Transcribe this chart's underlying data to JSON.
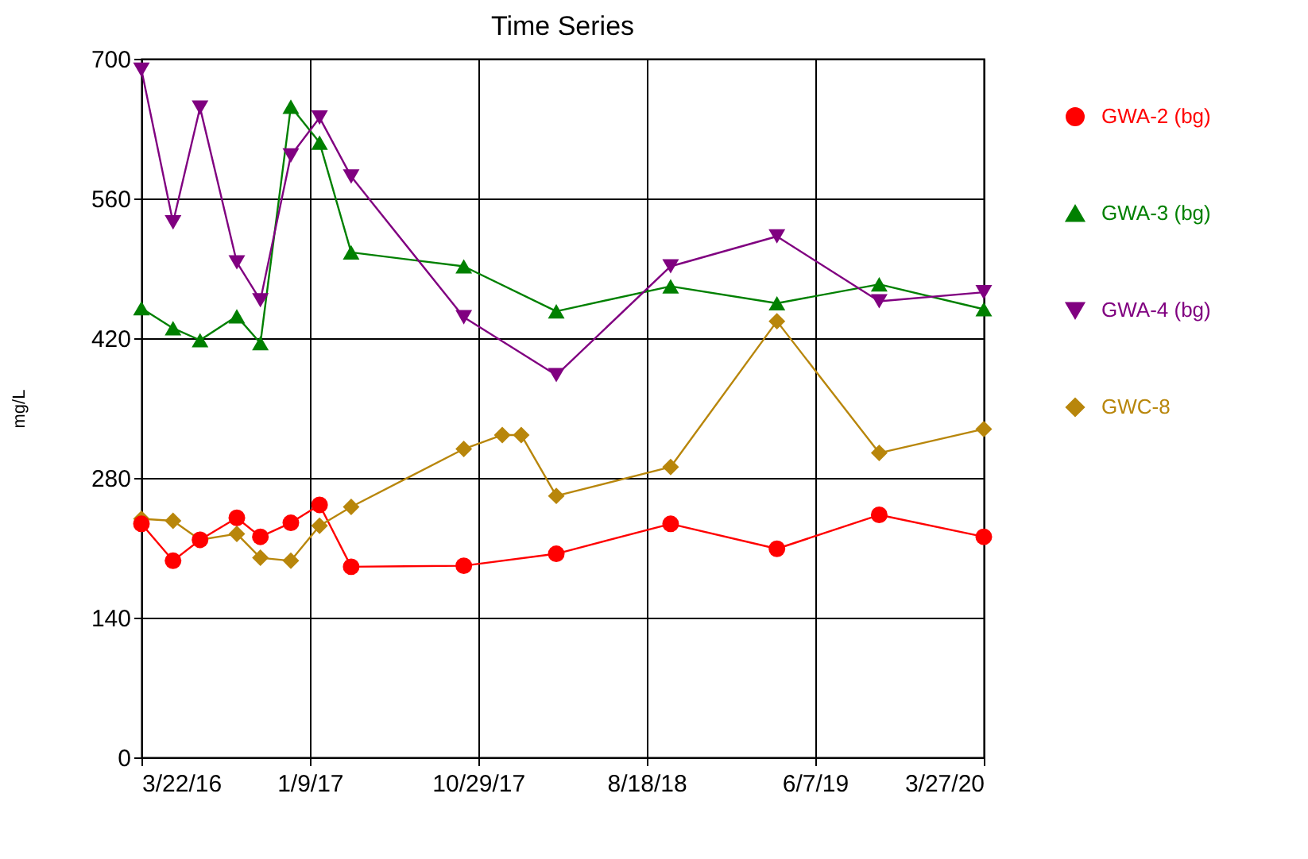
{
  "chart_data": {
    "type": "line",
    "title": "Time Series",
    "ylabel": "mg/L",
    "xlim": [
      "2016-03-22",
      "2020-03-27"
    ],
    "xticks": [
      {
        "value": "2016-03-22",
        "label": "3/22/16"
      },
      {
        "value": "2017-01-09",
        "label": "1/9/17"
      },
      {
        "value": "2017-10-29",
        "label": "10/29/17"
      },
      {
        "value": "2018-08-18",
        "label": "8/18/18"
      },
      {
        "value": "2019-06-07",
        "label": "6/7/19"
      },
      {
        "value": "2020-03-27",
        "label": "3/27/20"
      }
    ],
    "ylim": [
      0,
      700
    ],
    "yticks": [
      0,
      140,
      280,
      420,
      560,
      700
    ],
    "grid": true,
    "legend": "right",
    "series": [
      {
        "name": "GWA-2 (bg)",
        "color": "#ff0000",
        "marker": "circle",
        "x": [
          "2016-03-22",
          "2016-05-16",
          "2016-07-02",
          "2016-09-04",
          "2016-10-15",
          "2016-12-07",
          "2017-01-26",
          "2017-03-22",
          "2017-10-04",
          "2018-03-14",
          "2018-09-29",
          "2019-04-02",
          "2019-09-27",
          "2020-03-27"
        ],
        "values": [
          234,
          197,
          218,
          240,
          221,
          235,
          253,
          191,
          192,
          204,
          234,
          209,
          243,
          221
        ]
      },
      {
        "name": "GWA-3 (bg)",
        "color": "#008000",
        "marker": "triangle",
        "x": [
          "2016-03-22",
          "2016-05-16",
          "2016-07-02",
          "2016-09-04",
          "2016-10-15",
          "2016-12-07",
          "2017-01-26",
          "2017-03-22",
          "2017-10-04",
          "2018-03-14",
          "2018-09-29",
          "2019-04-02",
          "2019-09-27",
          "2020-03-27"
        ],
        "values": [
          450,
          430,
          418,
          442,
          415,
          652,
          616,
          506,
          492,
          447,
          472,
          455,
          474,
          449
        ]
      },
      {
        "name": "GWA-4 (bg)",
        "color": "#800080",
        "marker": "triangle-down",
        "x": [
          "2016-03-22",
          "2016-05-16",
          "2016-07-02",
          "2016-09-04",
          "2016-10-15",
          "2016-12-07",
          "2017-01-26",
          "2017-03-22",
          "2017-10-04",
          "2018-03-14",
          "2018-09-29",
          "2019-04-02",
          "2019-09-27",
          "2020-03-27"
        ],
        "values": [
          689,
          536,
          651,
          496,
          458,
          603,
          641,
          582,
          441,
          383,
          492,
          522,
          457,
          466
        ]
      },
      {
        "name": "GWC-8",
        "color": "#b8860b",
        "marker": "diamond",
        "x": [
          "2016-03-22",
          "2016-05-16",
          "2016-07-02",
          "2016-09-04",
          "2016-10-15",
          "2016-12-07",
          "2017-01-26",
          "2017-03-22",
          "2017-10-04",
          "2017-12-10",
          "2018-01-12",
          "2018-03-14",
          "2018-09-29",
          "2019-04-02",
          "2019-09-27",
          "2020-03-27"
        ],
        "values": [
          239,
          237,
          218,
          224,
          200,
          197,
          232,
          251,
          309,
          323,
          323,
          262,
          291,
          437,
          305,
          329
        ]
      }
    ]
  }
}
